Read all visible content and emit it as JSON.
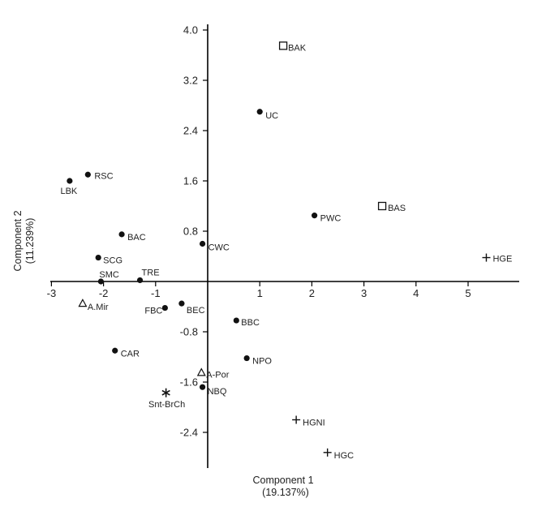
{
  "chart_data": {
    "type": "scatter",
    "title": "",
    "xlabel": "Component 1",
    "xlabel_sub": "(19.137%)",
    "ylabel": "Component 2",
    "ylabel_sub": "(11.239%)",
    "xlim": [
      -3,
      6
    ],
    "ylim": [
      -3.0,
      4.0
    ],
    "x_ticks": [
      -3,
      -2,
      -1,
      1,
      2,
      3,
      4,
      5
    ],
    "y_ticks": [
      4.0,
      3.2,
      2.4,
      1.6,
      0.8,
      -0.8,
      -1.6,
      -2.4
    ],
    "grid": false,
    "legend": "none",
    "points": [
      {
        "label": "BAK",
        "x": 1.45,
        "y": 3.75,
        "marker": "square"
      },
      {
        "label": "UC",
        "x": 1.0,
        "y": 2.7,
        "marker": "circle"
      },
      {
        "label": "RSC",
        "x": -2.3,
        "y": 1.7,
        "marker": "circle"
      },
      {
        "label": "LBK",
        "x": -2.65,
        "y": 1.6,
        "marker": "circle"
      },
      {
        "label": "BAS",
        "x": 3.35,
        "y": 1.2,
        "marker": "square"
      },
      {
        "label": "PWC",
        "x": 2.05,
        "y": 1.05,
        "marker": "circle"
      },
      {
        "label": "BAC",
        "x": -1.65,
        "y": 0.75,
        "marker": "circle"
      },
      {
        "label": "CWC",
        "x": -0.1,
        "y": 0.6,
        "marker": "circle"
      },
      {
        "label": "HGE",
        "x": 5.35,
        "y": 0.38,
        "marker": "plus"
      },
      {
        "label": "SCG",
        "x": -2.1,
        "y": 0.38,
        "marker": "circle"
      },
      {
        "label": "SMC",
        "x": -2.05,
        "y": 0.0,
        "marker": "circle"
      },
      {
        "label": "TRE",
        "x": -1.3,
        "y": 0.02,
        "marker": "circle"
      },
      {
        "label": "A.Mir",
        "x": -2.4,
        "y": -0.35,
        "marker": "triangle"
      },
      {
        "label": "FBC",
        "x": -0.82,
        "y": -0.42,
        "marker": "circle"
      },
      {
        "label": "BEC",
        "x": -0.5,
        "y": -0.35,
        "marker": "circle"
      },
      {
        "label": "BBC",
        "x": 0.55,
        "y": -0.62,
        "marker": "circle"
      },
      {
        "label": "CAR",
        "x": -1.78,
        "y": -1.1,
        "marker": "circle"
      },
      {
        "label": "NPO",
        "x": 0.75,
        "y": -1.22,
        "marker": "circle"
      },
      {
        "label": "A-Por",
        "x": -0.12,
        "y": -1.45,
        "marker": "triangle"
      },
      {
        "label": "NBQ",
        "x": -0.1,
        "y": -1.68,
        "marker": "circle"
      },
      {
        "label": "Snt-BrCh",
        "x": -0.8,
        "y": -1.77,
        "marker": "asterisk"
      },
      {
        "label": "HGNI",
        "x": 1.7,
        "y": -2.2,
        "marker": "plus"
      },
      {
        "label": "HGC",
        "x": 2.3,
        "y": -2.72,
        "marker": "plus"
      }
    ]
  }
}
